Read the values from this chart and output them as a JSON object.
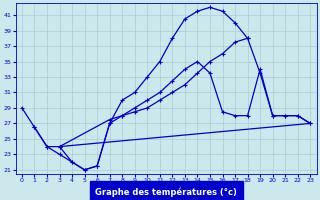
{
  "xlabel": "Graphe des températures (°c)",
  "bg_color": "#cce8ec",
  "line_color": "#0000cc",
  "grid_color": "#aacccc",
  "xlim": [
    -0.5,
    23.5
  ],
  "ylim": [
    20.5,
    42.5
  ],
  "xticks": [
    0,
    1,
    2,
    3,
    4,
    5,
    6,
    7,
    8,
    9,
    10,
    11,
    12,
    13,
    14,
    15,
    16,
    17,
    18,
    19,
    20,
    21,
    22,
    23
  ],
  "yticks": [
    21,
    23,
    25,
    27,
    29,
    31,
    33,
    35,
    37,
    39,
    41
  ],
  "line1_x": [
    0,
    1,
    2,
    3,
    4,
    5,
    6,
    7,
    8,
    9,
    10,
    11,
    12,
    13,
    14,
    15,
    16,
    17,
    18
  ],
  "line1_y": [
    29,
    26.5,
    24,
    23,
    22,
    21,
    21.5,
    27,
    30,
    31,
    33,
    35,
    38,
    40.5,
    41.5,
    42,
    41.5,
    40,
    38
  ],
  "line2_x": [
    3,
    4,
    5,
    6,
    7,
    8,
    9,
    10,
    11,
    12,
    13,
    14,
    15,
    16,
    17,
    18,
    19,
    20,
    21,
    22,
    23
  ],
  "line2_y": [
    24,
    22,
    21,
    21.5,
    27,
    28,
    29,
    30,
    31,
    32.5,
    34,
    35,
    33.5,
    28.5,
    28,
    28,
    34,
    28,
    28,
    28,
    27
  ],
  "line3_x": [
    1,
    2,
    3,
    7,
    8,
    9,
    10,
    11,
    12,
    13,
    14,
    15,
    16,
    17,
    18,
    19,
    20,
    21,
    22,
    23
  ],
  "line3_y": [
    26.5,
    24,
    24,
    27.5,
    28,
    28.5,
    29,
    30,
    31,
    32,
    33.5,
    35,
    36,
    37.5,
    38,
    33.5,
    28,
    28,
    28,
    27
  ],
  "line4_x": [
    3,
    23
  ],
  "line4_y": [
    24,
    27
  ]
}
